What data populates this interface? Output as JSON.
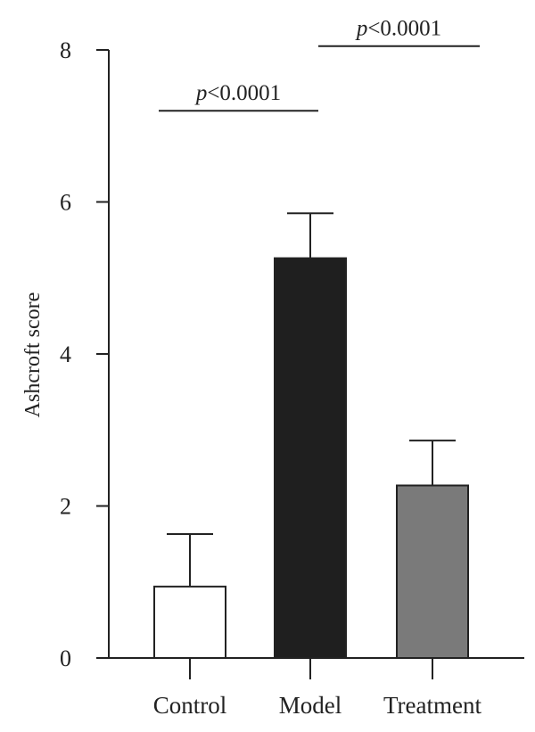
{
  "chart_data": {
    "type": "bar",
    "title": "",
    "xlabel": "",
    "ylabel": "Ashcroft score",
    "ylim": [
      0,
      8
    ],
    "yticks": [
      0,
      2,
      4,
      6,
      8
    ],
    "grid": false,
    "categories": [
      "Control",
      "Model",
      "Treatment"
    ],
    "values": [
      0.94,
      5.26,
      2.27
    ],
    "errors": [
      0.69,
      0.59,
      0.59
    ],
    "bar_colors": [
      "#ffffff",
      "#1f1f1f",
      "#7a7a7a"
    ],
    "significance": [
      {
        "from": 0,
        "to": 1,
        "y": 7.2,
        "label_prefix": "p",
        "label_suffix": "<0.0001"
      },
      {
        "from": 1,
        "to": 2,
        "y": 8.05,
        "label_prefix": "p",
        "label_suffix": "<0.0001"
      }
    ]
  }
}
